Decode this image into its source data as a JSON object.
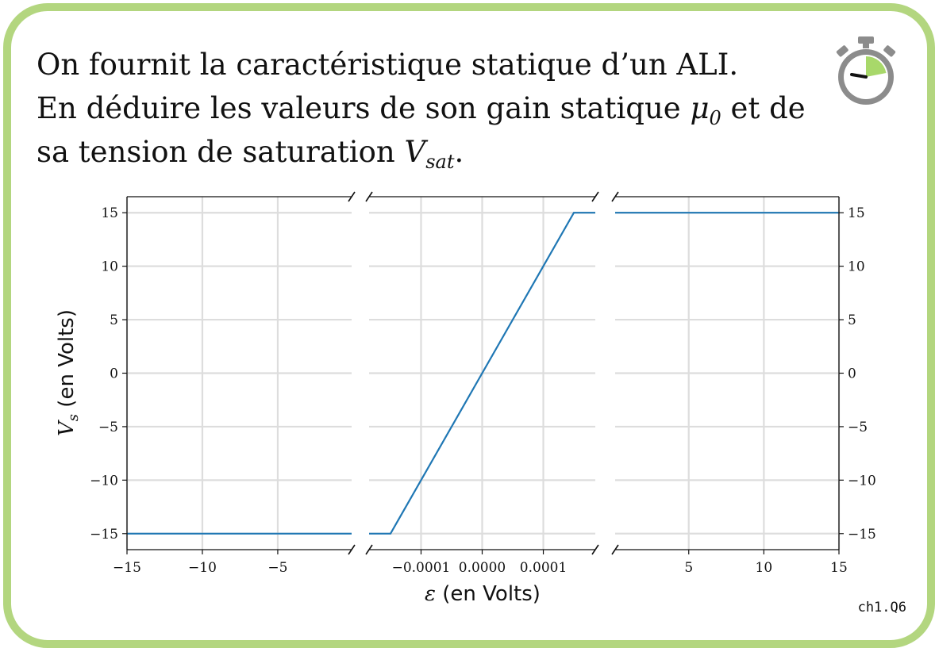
{
  "question": {
    "line1": "On fournit la caractéristique statique d’un ALI.",
    "line2_before": "En déduire les valeurs de son gain statique ",
    "mu": "μ",
    "mu_sub": "0",
    "line2_after": " et de",
    "line3_before": "sa tension de saturation ",
    "v": "V",
    "v_sub": "sat",
    "line3_after": "."
  },
  "ref_code": "ch1.Q6",
  "colors": {
    "frame": "#b3d67f",
    "line": "#1f77b4",
    "grid": "#dddddd",
    "timer_fill": "#a8d86a",
    "timer_ring": "#8c8c8c"
  },
  "icons": {
    "timer": "stopwatch-icon"
  },
  "chart_data": {
    "type": "line",
    "xlabel_sym": "ε",
    "xlabel_unit": " (en Volts)",
    "ylabel_sym": "V",
    "ylabel_sub": "s",
    "ylabel_unit": " (en Volts)",
    "ylim": [
      -16.5,
      16.5
    ],
    "yticks": [
      15,
      10,
      5,
      0,
      -5,
      -10,
      -15
    ],
    "ytick_labels": [
      "15",
      "10",
      "5",
      "0",
      "−5",
      "−10",
      "−15"
    ],
    "grid": true,
    "broken_axis": true,
    "panels": [
      {
        "xlim": [
          -15,
          -0.1
        ],
        "xticks": [
          -15,
          -10,
          -5
        ],
        "xtick_labels": [
          "−15",
          "−10",
          "−5"
        ],
        "x": [
          -15,
          -0.1
        ],
        "y": [
          -15,
          -15
        ]
      },
      {
        "xlim": [
          -0.000185,
          0.000185
        ],
        "xticks": [
          -0.0001,
          0.0,
          0.0001
        ],
        "xtick_labels": [
          "−0.0001",
          "0.0000",
          "0.0001"
        ],
        "x": [
          -0.000185,
          -0.00015,
          0.00015,
          0.000185
        ],
        "y": [
          -15,
          -15,
          15,
          15
        ]
      },
      {
        "xlim": [
          0.1,
          15
        ],
        "xticks": [
          5,
          10,
          15
        ],
        "xtick_labels": [
          "5",
          "10",
          "15"
        ],
        "x": [
          0.1,
          15
        ],
        "y": [
          15,
          15
        ]
      }
    ]
  }
}
